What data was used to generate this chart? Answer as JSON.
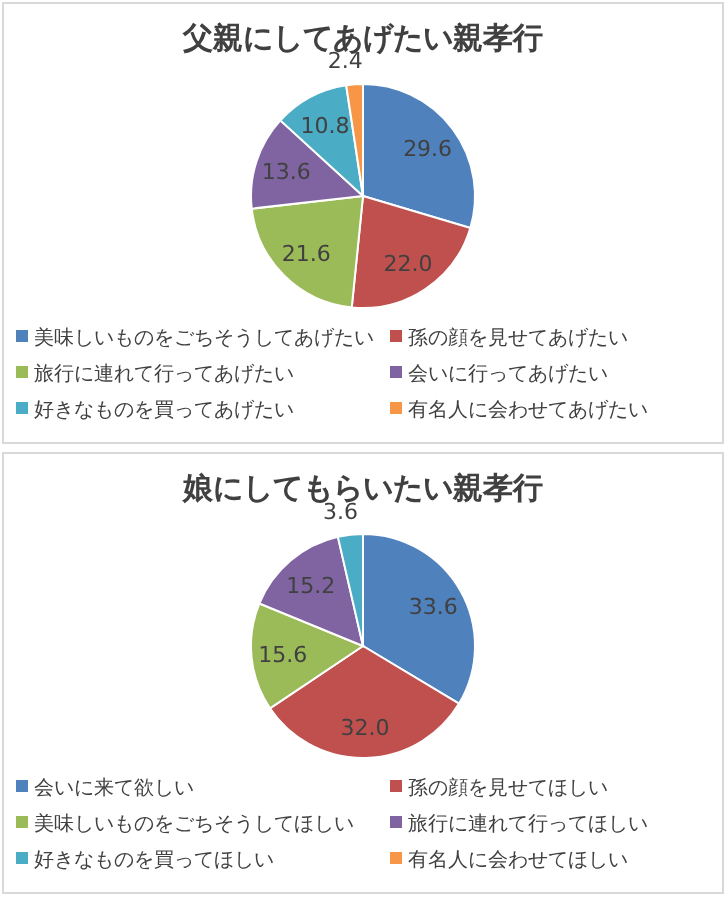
{
  "chart_data": [
    {
      "type": "pie",
      "title": "父親にしてあげたい親孝行",
      "categories": [
        "美味しいものをごちそうしてあげたい",
        "孫の顔を見せてあげたい",
        "旅行に連れて行ってあげたい",
        "会いに行ってあげたい",
        "好きなものを買ってあげたい",
        "有名人に会わせてあげたい"
      ],
      "values": [
        29.6,
        22.0,
        21.6,
        13.6,
        10.8,
        2.4
      ],
      "value_labels": [
        "29.6",
        "22.0",
        "21.6",
        "13.6",
        "10.8",
        "2.4"
      ],
      "colors": [
        "#4f81bd",
        "#c0504d",
        "#9bbb59",
        "#8064a2",
        "#4bacc6",
        "#f79646"
      ],
      "legend": "bottom"
    },
    {
      "type": "pie",
      "title": "娘にしてもらいたい親孝行",
      "categories": [
        "会いに来て欲しい",
        "孫の顔を見せてほしい",
        "美味しいものをごちそうしてほしい",
        "旅行に連れて行ってほしい",
        "好きなものを買ってほしい",
        "有名人に会わせてほしい"
      ],
      "values": [
        33.6,
        32.0,
        15.6,
        15.2,
        3.6,
        0
      ],
      "value_labels": [
        "33.6",
        "32.0",
        "15.6",
        "15.2",
        "3.6",
        null
      ],
      "colors": [
        "#4f81bd",
        "#c0504d",
        "#9bbb59",
        "#8064a2",
        "#4bacc6",
        "#f79646"
      ],
      "legend": "bottom"
    }
  ]
}
